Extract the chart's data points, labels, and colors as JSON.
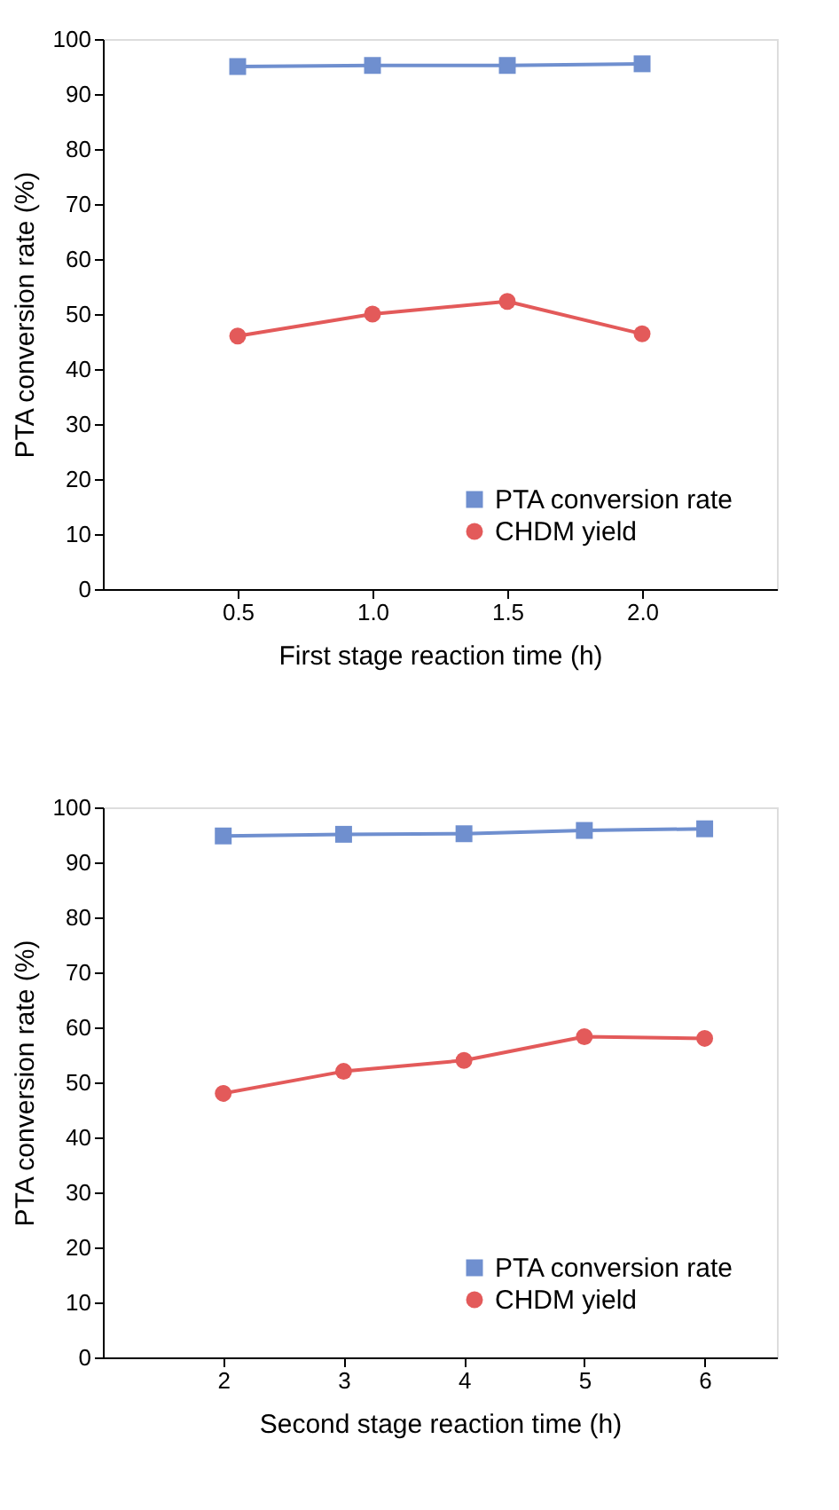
{
  "chart_data": [
    {
      "type": "line",
      "xlabel": "First stage reaction time (h)",
      "ylabel": "PTA conversion rate (%)",
      "x": [
        0.5,
        1.0,
        1.5,
        2.0
      ],
      "xlim": [
        0,
        2.5
      ],
      "xticks": [
        {
          "value": 0.5,
          "label": "0.5"
        },
        {
          "value": 1.0,
          "label": "1.0"
        },
        {
          "value": 1.5,
          "label": "1.5"
        },
        {
          "value": 2.0,
          "label": "2.0"
        }
      ],
      "ylim": [
        0,
        100
      ],
      "yticks": [
        0,
        10,
        20,
        30,
        40,
        50,
        60,
        70,
        80,
        90,
        100
      ],
      "legend": "bottom right",
      "grid": false,
      "series": [
        {
          "name": "PTA conversion rate",
          "color": "#6f8fcf",
          "marker": "square",
          "values": [
            95.0,
            95.2,
            95.2,
            95.5
          ]
        },
        {
          "name": "CHDM  yield",
          "color": "#e35a5a",
          "marker": "circle",
          "values": [
            46.0,
            50.0,
            52.3,
            46.4
          ]
        }
      ]
    },
    {
      "type": "line",
      "xlabel": "Second stage reaction time (h)",
      "ylabel": "PTA conversion rate (%)",
      "x": [
        2,
        3,
        4,
        5,
        6
      ],
      "xlim": [
        1,
        6.6
      ],
      "xticks": [
        2,
        3,
        4,
        5,
        6
      ],
      "ylim": [
        0,
        100
      ],
      "yticks": [
        0,
        10,
        20,
        30,
        40,
        50,
        60,
        70,
        80,
        90,
        100
      ],
      "legend": "bottom right",
      "grid": false,
      "series": [
        {
          "name": "PTA conversion rate",
          "color": "#6f8fcf",
          "marker": "square",
          "values": [
            94.8,
            95.1,
            95.2,
            95.8,
            96.1
          ]
        },
        {
          "name": "CHDM  yield",
          "color": "#e35a5a",
          "marker": "circle",
          "values": [
            48.0,
            52.0,
            54.0,
            58.3,
            58.0
          ]
        }
      ]
    }
  ]
}
